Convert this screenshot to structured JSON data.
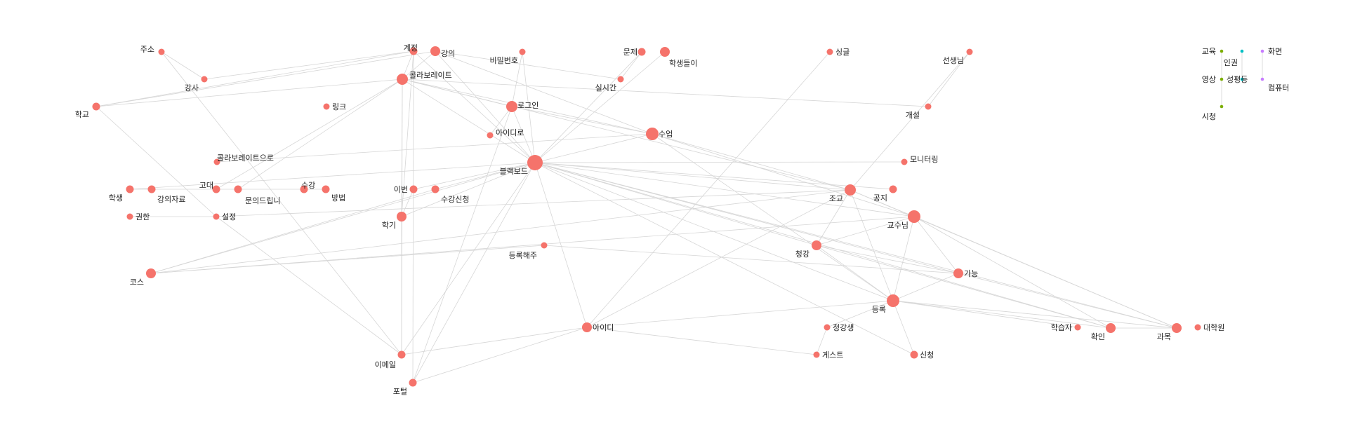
{
  "colors": {
    "main_node": "#F5736B",
    "edge": "#d6d6d6",
    "green": "#7CAE00",
    "teal": "#00BFC4",
    "purple": "#C77CFF"
  },
  "nodes": [
    {
      "id": "주소",
      "label": "주소",
      "weight": 1,
      "group": "main"
    },
    {
      "id": "계정",
      "label": "계정",
      "weight": 2,
      "group": "main"
    },
    {
      "id": "강의",
      "label": "강의",
      "weight": 3,
      "group": "main"
    },
    {
      "id": "비밀번호",
      "label": "비밀번호",
      "weight": 1,
      "group": "main"
    },
    {
      "id": "문제",
      "label": "문제",
      "weight": 2,
      "group": "main"
    },
    {
      "id": "학생들이",
      "label": "학생들이",
      "weight": 3,
      "group": "main"
    },
    {
      "id": "싱글",
      "label": "싱글",
      "weight": 1,
      "group": "main"
    },
    {
      "id": "선생님",
      "label": "선생님",
      "weight": 1,
      "group": "main"
    },
    {
      "id": "강사",
      "label": "강사",
      "weight": 1,
      "group": "main"
    },
    {
      "id": "콜라보레이트",
      "label": "콜라보레이트",
      "weight": 4,
      "group": "main"
    },
    {
      "id": "실시간",
      "label": "실시간",
      "weight": 1,
      "group": "main"
    },
    {
      "id": "학교",
      "label": "학교",
      "weight": 2,
      "group": "main"
    },
    {
      "id": "링크",
      "label": "링크",
      "weight": 1,
      "group": "main"
    },
    {
      "id": "로그인",
      "label": "로그인",
      "weight": 4,
      "group": "main"
    },
    {
      "id": "개설",
      "label": "개설",
      "weight": 1,
      "group": "main"
    },
    {
      "id": "아이디로",
      "label": "아이디로",
      "weight": 1,
      "group": "main"
    },
    {
      "id": "수업",
      "label": "수업",
      "weight": 5,
      "group": "main"
    },
    {
      "id": "콜라보레이트으로",
      "label": "콜라보레이트으로",
      "weight": 1,
      "group": "main"
    },
    {
      "id": "블랙보드",
      "label": "블랙보드",
      "weight": 8,
      "group": "main"
    },
    {
      "id": "모니터링",
      "label": "모니터링",
      "weight": 1,
      "group": "main"
    },
    {
      "id": "학생",
      "label": "학생",
      "weight": 2,
      "group": "main"
    },
    {
      "id": "강의자료",
      "label": "강의자료",
      "weight": 2,
      "group": "main"
    },
    {
      "id": "고대",
      "label": "고대",
      "weight": 2,
      "group": "main"
    },
    {
      "id": "문의드립니",
      "label": "문의드립니",
      "weight": 2,
      "group": "main"
    },
    {
      "id": "수강",
      "label": "수강",
      "weight": 2,
      "group": "main"
    },
    {
      "id": "방법",
      "label": "방법",
      "weight": 2,
      "group": "main"
    },
    {
      "id": "이번",
      "label": "이번",
      "weight": 2,
      "group": "main"
    },
    {
      "id": "수강신청",
      "label": "수강신청",
      "weight": 2,
      "group": "main"
    },
    {
      "id": "조교",
      "label": "조교",
      "weight": 4,
      "group": "main"
    },
    {
      "id": "공지",
      "label": "공지",
      "weight": 2,
      "group": "main"
    },
    {
      "id": "권한",
      "label": "권한",
      "weight": 1,
      "group": "main"
    },
    {
      "id": "설정",
      "label": "설정",
      "weight": 1,
      "group": "main"
    },
    {
      "id": "학기",
      "label": "학기",
      "weight": 3,
      "group": "main"
    },
    {
      "id": "교수님",
      "label": "교수님",
      "weight": 5,
      "group": "main"
    },
    {
      "id": "등록해주",
      "label": "등록해주",
      "weight": 1,
      "group": "main"
    },
    {
      "id": "청강",
      "label": "청강",
      "weight": 3,
      "group": "main"
    },
    {
      "id": "코스",
      "label": "코스",
      "weight": 3,
      "group": "main"
    },
    {
      "id": "가능",
      "label": "가능",
      "weight": 3,
      "group": "main"
    },
    {
      "id": "등록",
      "label": "등록",
      "weight": 5,
      "group": "main"
    },
    {
      "id": "아이디",
      "label": "아이디",
      "weight": 3,
      "group": "main"
    },
    {
      "id": "청강생",
      "label": "청강생",
      "weight": 1,
      "group": "main"
    },
    {
      "id": "학습자",
      "label": "학습자",
      "weight": 1,
      "group": "main"
    },
    {
      "id": "확인",
      "label": "확인",
      "weight": 3,
      "group": "main"
    },
    {
      "id": "과목",
      "label": "과목",
      "weight": 3,
      "group": "main"
    },
    {
      "id": "대학원",
      "label": "대학원",
      "weight": 1,
      "group": "main"
    },
    {
      "id": "게스트",
      "label": "게스트",
      "weight": 1,
      "group": "main"
    },
    {
      "id": "신청",
      "label": "신청",
      "weight": 2,
      "group": "main"
    },
    {
      "id": "이메일",
      "label": "이메일",
      "weight": 2,
      "group": "main"
    },
    {
      "id": "포털",
      "label": "포털",
      "weight": 2,
      "group": "main"
    },
    {
      "id": "교육",
      "label": "교육",
      "weight": 0,
      "group": "green"
    },
    {
      "id": "영상",
      "label": "영상",
      "weight": 0,
      "group": "green"
    },
    {
      "id": "시청",
      "label": "시청",
      "weight": 0,
      "group": "green"
    },
    {
      "id": "인권",
      "label": "인권",
      "weight": 0,
      "group": "teal"
    },
    {
      "id": "성평등",
      "label": "성평등",
      "weight": 0,
      "group": "teal"
    },
    {
      "id": "화면",
      "label": "화면",
      "weight": 0,
      "group": "purple"
    },
    {
      "id": "컴퓨터",
      "label": "컴퓨터",
      "weight": 0,
      "group": "purple"
    }
  ],
  "edges": [
    [
      "주소",
      "강사"
    ],
    [
      "주소",
      "이메일"
    ],
    [
      "계정",
      "학교"
    ],
    [
      "계정",
      "강사"
    ],
    [
      "계정",
      "콜라보레이트"
    ],
    [
      "계정",
      "블랙보드"
    ],
    [
      "계정",
      "학기"
    ],
    [
      "계정",
      "포털"
    ],
    [
      "강의",
      "학교"
    ],
    [
      "강의",
      "콜라보레이트"
    ],
    [
      "강의",
      "블랙보드"
    ],
    [
      "강의",
      "실시간"
    ],
    [
      "강의",
      "수업"
    ],
    [
      "비밀번호",
      "로그인"
    ],
    [
      "비밀번호",
      "블랙보드"
    ],
    [
      "문제",
      "실시간"
    ],
    [
      "문제",
      "블랙보드"
    ],
    [
      "학생들이",
      "블랙보드"
    ],
    [
      "싱글",
      "아이디"
    ],
    [
      "선생님",
      "개설"
    ],
    [
      "선생님",
      "조교"
    ],
    [
      "콜라보레이트",
      "학교"
    ],
    [
      "콜라보레이트",
      "로그인"
    ],
    [
      "콜라보레이트",
      "수업"
    ],
    [
      "콜라보레이트",
      "블랙보드"
    ],
    [
      "콜라보레이트",
      "학기"
    ],
    [
      "콜라보레이트",
      "이메일"
    ],
    [
      "콜라보레이트",
      "개설"
    ],
    [
      "콜라보레이트",
      "고대"
    ],
    [
      "콜라보레이트",
      "문의드립니"
    ],
    [
      "콜라보레이트",
      "조교"
    ],
    [
      "로그인",
      "아이디로"
    ],
    [
      "로그인",
      "블랙보드"
    ],
    [
      "로그인",
      "수업"
    ],
    [
      "로그인",
      "포털"
    ],
    [
      "수업",
      "블랙보드"
    ],
    [
      "수업",
      "콜라보레이트으로"
    ],
    [
      "수업",
      "조교"
    ],
    [
      "수업",
      "등록"
    ],
    [
      "수업",
      "교수님"
    ],
    [
      "학교",
      "설정"
    ],
    [
      "블랙보드",
      "모니터링"
    ],
    [
      "블랙보드",
      "조교"
    ],
    [
      "블랙보드",
      "공지"
    ],
    [
      "블랙보드",
      "교수님"
    ],
    [
      "블랙보드",
      "청강"
    ],
    [
      "블랙보드",
      "가능"
    ],
    [
      "블랙보드",
      "등록"
    ],
    [
      "블랙보드",
      "아이디"
    ],
    [
      "블랙보드",
      "신청"
    ],
    [
      "블랙보드",
      "확인"
    ],
    [
      "블랙보드",
      "과목"
    ],
    [
      "블랙보드",
      "코스"
    ],
    [
      "블랙보드",
      "이메일"
    ],
    [
      "블랙보드",
      "포털"
    ],
    [
      "블랙보드",
      "학생"
    ],
    [
      "블랙보드",
      "이번"
    ],
    [
      "블랙보드",
      "수강신청"
    ],
    [
      "블랙보드",
      "학기"
    ],
    [
      "학생",
      "강의자료"
    ],
    [
      "강의자료",
      "고대"
    ],
    [
      "고대",
      "문의드립니"
    ],
    [
      "문의드립니",
      "수강"
    ],
    [
      "수강",
      "방법"
    ],
    [
      "이번",
      "학기"
    ],
    [
      "수강신청",
      "코스"
    ],
    [
      "권한",
      "설정"
    ],
    [
      "설정",
      "조교"
    ],
    [
      "설정",
      "이메일"
    ],
    [
      "학기",
      "이메일"
    ],
    [
      "조교",
      "교수님"
    ],
    [
      "조교",
      "등록"
    ],
    [
      "조교",
      "청강"
    ],
    [
      "조교",
      "과목"
    ],
    [
      "조교",
      "아이디"
    ],
    [
      "조교",
      "코스"
    ],
    [
      "교수님",
      "코스"
    ],
    [
      "교수님",
      "청강"
    ],
    [
      "교수님",
      "가능"
    ],
    [
      "교수님",
      "등록"
    ],
    [
      "교수님",
      "과목"
    ],
    [
      "교수님",
      "확인"
    ],
    [
      "등록해주",
      "코스"
    ],
    [
      "등록해주",
      "가능"
    ],
    [
      "청강",
      "가능"
    ],
    [
      "청강",
      "등록"
    ],
    [
      "청강",
      "확인"
    ],
    [
      "가능",
      "등록"
    ],
    [
      "가능",
      "과목"
    ],
    [
      "등록",
      "아이디"
    ],
    [
      "등록",
      "학습자"
    ],
    [
      "등록",
      "확인"
    ],
    [
      "등록",
      "과목"
    ],
    [
      "등록",
      "청강생"
    ],
    [
      "등록",
      "신청"
    ],
    [
      "아이디",
      "이메일"
    ],
    [
      "아이디",
      "포털"
    ],
    [
      "아이디",
      "게스트"
    ],
    [
      "청강생",
      "게스트"
    ],
    [
      "확인",
      "과목"
    ],
    [
      "교육",
      "영상"
    ],
    [
      "영상",
      "시청"
    ],
    [
      "인권",
      "성평등"
    ],
    [
      "화면",
      "컴퓨터"
    ]
  ]
}
